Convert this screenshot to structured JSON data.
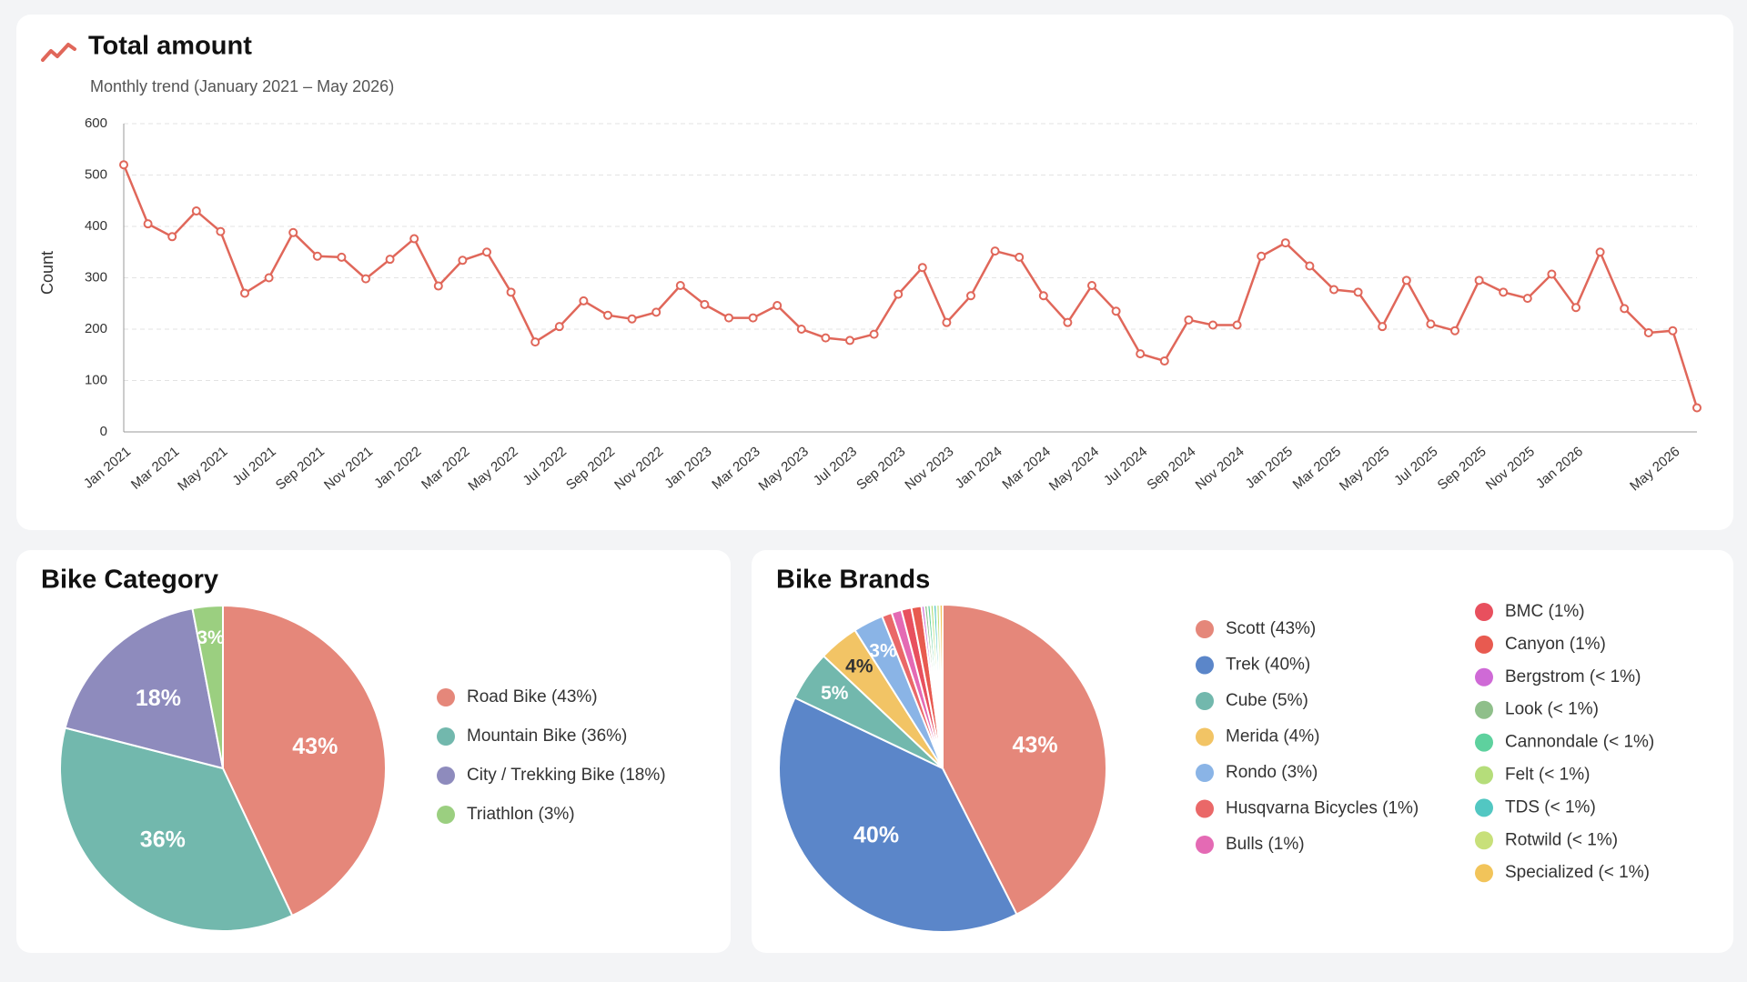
{
  "chart_data": [
    {
      "type": "line",
      "title": "Total amount",
      "subtitle": "Monthly trend (January 2021 – May 2026)",
      "y_label": "Count",
      "color": "#e0675a",
      "grid": true,
      "ylim": [
        0,
        600
      ],
      "yticks": [
        0,
        100,
        200,
        300,
        400,
        500,
        600
      ],
      "categories": [
        "Jan 2021",
        null,
        "Mar 2021",
        null,
        "May 2021",
        null,
        "Jul 2021",
        null,
        "Sep 2021",
        null,
        "Nov 2021",
        null,
        "Jan 2022",
        null,
        "Mar 2022",
        null,
        "May 2022",
        null,
        "Jul 2022",
        null,
        "Sep 2022",
        null,
        "Nov 2022",
        null,
        "Jan 2023",
        null,
        "Mar 2023",
        null,
        "May 2023",
        null,
        "Jul 2023",
        null,
        "Sep 2023",
        null,
        "Nov 2023",
        null,
        "Jan 2024",
        null,
        "Mar 2024",
        null,
        "May 2024",
        null,
        "Jul 2024",
        null,
        "Sep 2024",
        null,
        "Nov 2024",
        null,
        "Jan 2025",
        null,
        "Mar 2025",
        null,
        "May 2025",
        null,
        "Jul 2025",
        null,
        "Sep 2025",
        null,
        "Nov 2025",
        null,
        "Jan 2026",
        null,
        null,
        null,
        "May 2026",
        null
      ],
      "values": [
        520,
        405,
        380,
        430,
        390,
        270,
        300,
        388,
        342,
        340,
        298,
        336,
        376,
        284,
        334,
        350,
        272,
        175,
        205,
        255,
        227,
        220,
        233,
        285,
        248,
        222,
        222,
        246,
        200,
        183,
        178,
        190,
        268,
        320,
        213,
        265,
        352,
        340,
        265,
        213,
        285,
        235,
        152,
        138,
        218,
        208,
        208,
        342,
        368,
        323,
        277,
        272,
        205,
        295,
        210,
        197,
        295,
        272,
        260,
        307,
        242,
        350,
        240,
        193,
        197,
        47
      ]
    },
    {
      "type": "pie",
      "title": "Bike Category",
      "categories": [
        "Road Bike (43%)",
        "Mountain Bike (36%)",
        "City / Trekking Bike (18%)",
        "Triathlon (3%)"
      ],
      "values": [
        43,
        36,
        18,
        3
      ],
      "value_labels": [
        "43%",
        "36%",
        "18%",
        "3%"
      ],
      "colors": [
        "#e5877a",
        "#72b8ad",
        "#8e8bbd",
        "#9bcf80"
      ]
    },
    {
      "type": "pie",
      "title": "Bike Brands",
      "categories": [
        "Scott (43%)",
        "Trek (40%)",
        "Cube (5%)",
        "Merida (4%)",
        "Rondo (3%)",
        "Husqvarna Bicycles (1%)",
        "Bulls (1%)",
        "BMC (1%)",
        "Canyon (1%)",
        "Bergstrom (< 1%)",
        "Look (< 1%)",
        "Cannondale (< 1%)",
        "Felt (< 1%)",
        "TDS (< 1%)",
        "Rotwild (< 1%)",
        "Specialized (< 1%)"
      ],
      "values": [
        43,
        40,
        5,
        4,
        3,
        1,
        1,
        1,
        1,
        0.3,
        0.3,
        0.3,
        0.3,
        0.3,
        0.3,
        0.3
      ],
      "value_labels": [
        "43%",
        "40%",
        "5%",
        "4%",
        "3%",
        null,
        null,
        null,
        null,
        null,
        null,
        null,
        null,
        null,
        null,
        null
      ],
      "colors": [
        "#e5877a",
        "#5b86c9",
        "#72b8ad",
        "#f2c465",
        "#8ab4e6",
        "#ea6868",
        "#e46ab4",
        "#e8505e",
        "#e85a50",
        "#cf6ad6",
        "#8fbf8a",
        "#5ed19e",
        "#b5dd7a",
        "#52c7c2",
        "#c8e07a",
        "#f2c45a"
      ]
    }
  ]
}
